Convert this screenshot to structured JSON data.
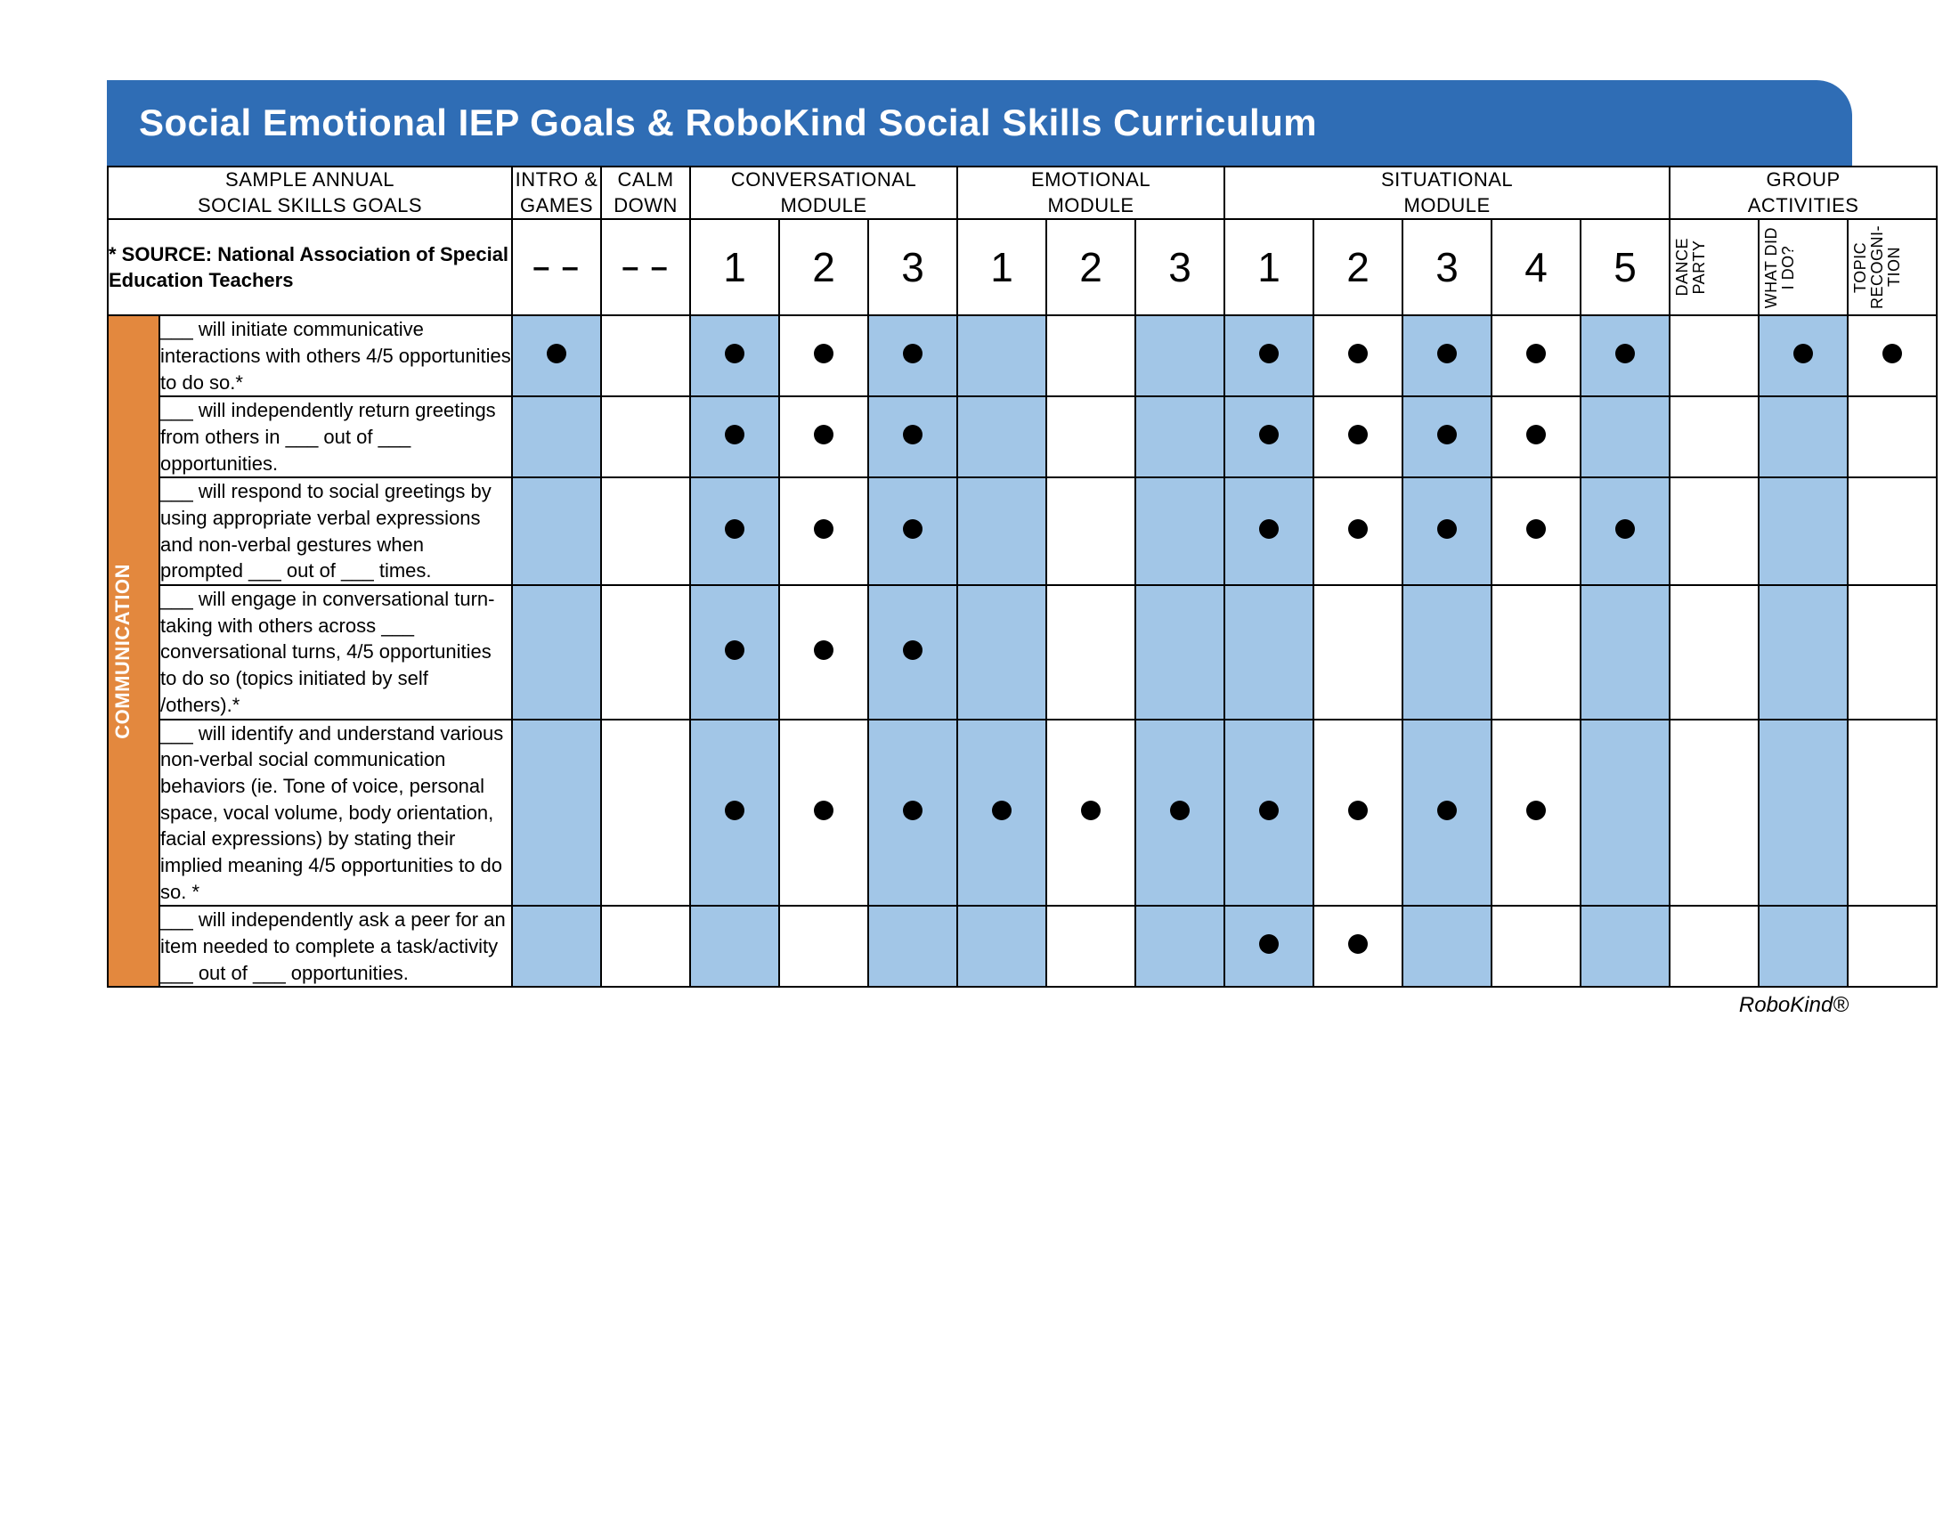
{
  "colors": {
    "header_bg": "#2f6db5",
    "category_bg": "#e3883e",
    "shade_bg": "#a2c6e7",
    "border": "#000000",
    "dot": "#000000",
    "text": "#000000"
  },
  "title": "Social Emotional IEP Goals & RoboKind Social Skills Curriculum",
  "footer": "RoboKind®",
  "header": {
    "goals_label_line1": "SAMPLE ANNUAL",
    "goals_label_line2": "SOCIAL SKILLS GOALS",
    "groups": [
      {
        "label_line1": "INTRO &",
        "label_line2": "GAMES",
        "span": 1
      },
      {
        "label_line1": "CALM",
        "label_line2": "DOWN",
        "span": 1
      },
      {
        "label_line1": "CONVERSATIONAL",
        "label_line2": "MODULE",
        "span": 3
      },
      {
        "label_line1": "EMOTIONAL",
        "label_line2": "MODULE",
        "span": 3
      },
      {
        "label_line1": "SITUATIONAL",
        "label_line2": "MODULE",
        "span": 5
      },
      {
        "label_line1": "GROUP",
        "label_line2": "ACTIVITIES",
        "span": 3
      }
    ],
    "source_prefix": "* SOURCE:",
    "source_text": " National Association of Special Education Teachers",
    "subcols": [
      {
        "type": "dash",
        "label": "– –"
      },
      {
        "type": "dash",
        "label": "– –"
      },
      {
        "type": "num",
        "label": "1"
      },
      {
        "type": "num",
        "label": "2"
      },
      {
        "type": "num",
        "label": "3"
      },
      {
        "type": "num",
        "label": "1"
      },
      {
        "type": "num",
        "label": "2"
      },
      {
        "type": "num",
        "label": "3"
      },
      {
        "type": "num",
        "label": "1"
      },
      {
        "type": "num",
        "label": "2"
      },
      {
        "type": "num",
        "label": "3"
      },
      {
        "type": "num",
        "label": "4"
      },
      {
        "type": "num",
        "label": "5"
      },
      {
        "type": "vert",
        "label": "DANCE\nPARTY"
      },
      {
        "type": "vert",
        "label": "WHAT DID\nI DO?"
      },
      {
        "type": "vert",
        "label": "TOPIC\nRECOGNI-\nTION"
      }
    ]
  },
  "shaded_columns": [
    0,
    2,
    4,
    5,
    7,
    8,
    10,
    12,
    14
  ],
  "category_label": "COMMUNICATION",
  "rows": [
    {
      "goal": "___ will initiate communicative interactions with others 4/5 opportunities to do so.*",
      "dots": [
        1,
        0,
        1,
        1,
        1,
        0,
        0,
        0,
        1,
        1,
        1,
        1,
        1,
        0,
        1,
        1
      ]
    },
    {
      "goal": "___ will independently return greetings from others in ___ out of ___ opportunities.",
      "dots": [
        0,
        0,
        1,
        1,
        1,
        0,
        0,
        0,
        1,
        1,
        1,
        1,
        0,
        0,
        0,
        0
      ]
    },
    {
      "goal": "___ will respond to social greetings by using appropriate verbal expressions and non-verbal gestures when prompted ___ out of ___ times.",
      "dots": [
        0,
        0,
        1,
        1,
        1,
        0,
        0,
        0,
        1,
        1,
        1,
        1,
        1,
        0,
        0,
        0
      ]
    },
    {
      "goal": "___ will engage in conversational turn-taking with others across ___ conversational turns, 4/5 opportunities to do so (topics initiated by self /others).*",
      "dots": [
        0,
        0,
        1,
        1,
        1,
        0,
        0,
        0,
        0,
        0,
        0,
        0,
        0,
        0,
        0,
        0
      ]
    },
    {
      "goal": "___ will identify and understand various non-verbal social communication behaviors (ie. Tone of voice, personal space, vocal volume, body orientation, facial expressions) by stating their implied meaning 4/5 opportunities to do so. *",
      "dots": [
        0,
        0,
        1,
        1,
        1,
        1,
        1,
        1,
        1,
        1,
        1,
        1,
        0,
        0,
        0,
        0
      ]
    },
    {
      "goal": "___ will independently ask a peer for an item needed to complete a task/activity ___ out of ___ opportunities.",
      "dots": [
        0,
        0,
        0,
        0,
        0,
        0,
        0,
        0,
        1,
        1,
        0,
        0,
        0,
        0,
        0,
        0
      ]
    }
  ]
}
